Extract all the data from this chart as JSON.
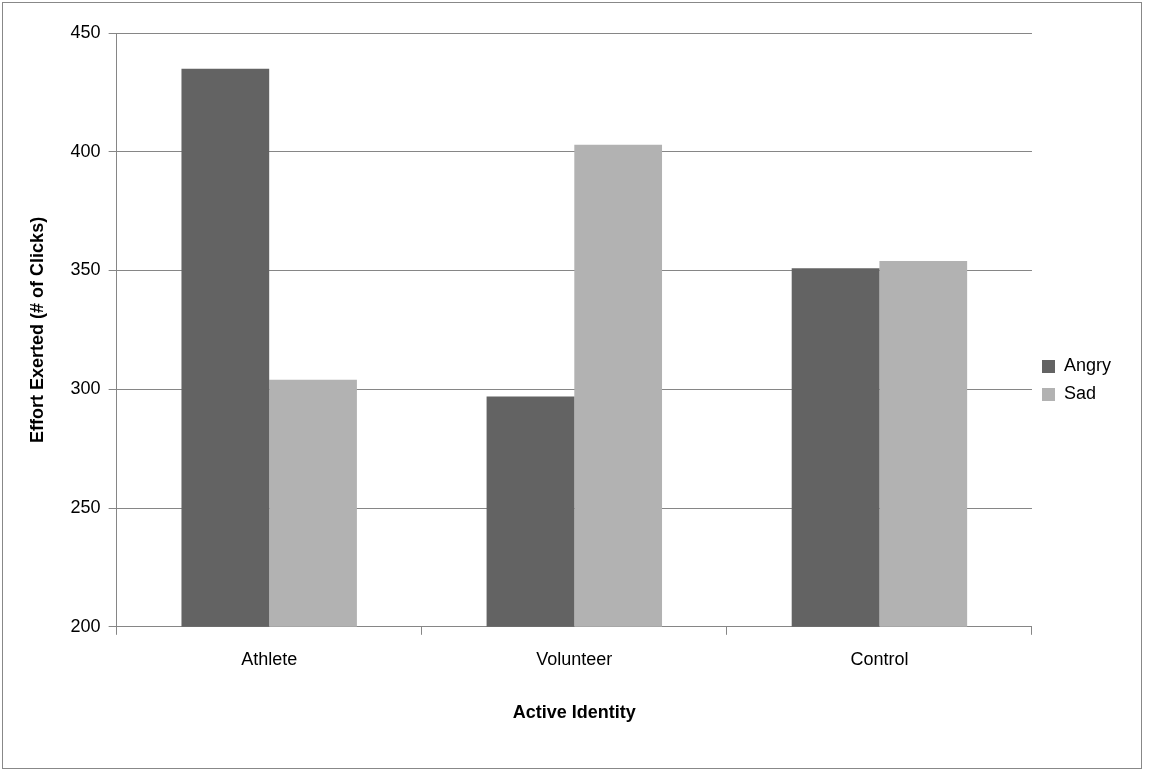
{
  "chart_data": {
    "type": "bar",
    "xlabel": "Active Identity",
    "ylabel": "Effort Exerted (# of Clicks)",
    "categories": [
      "Athlete",
      "Volunteer",
      "Control"
    ],
    "series": [
      {
        "name": "Angry",
        "color": "#636363",
        "values": [
          435,
          297,
          351
        ]
      },
      {
        "name": "Sad",
        "color": "#b2b2b2",
        "values": [
          304,
          403,
          354
        ]
      }
    ],
    "ylim": [
      200,
      450
    ],
    "yticks": [
      200,
      250,
      300,
      350,
      400,
      450
    ],
    "grid": "y",
    "legend": "right"
  }
}
